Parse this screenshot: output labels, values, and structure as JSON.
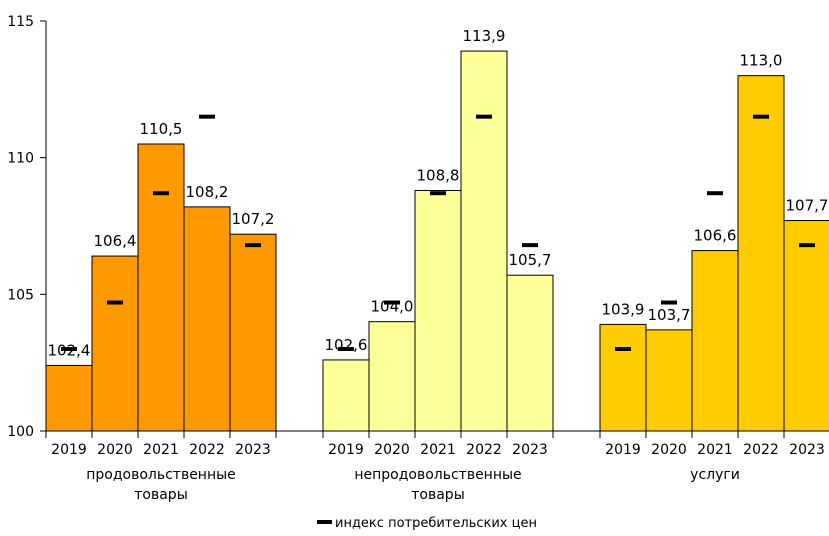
{
  "chart_data": {
    "type": "bar",
    "ylim": [
      100,
      115
    ],
    "y_ticks": [
      "100",
      "105",
      "110",
      "115"
    ],
    "grid": false,
    "legend_position": "bottom-center",
    "legend": [
      "индекс потребительских цен"
    ],
    "groups": [
      {
        "label_lines": [
          "продовольственные",
          "товары"
        ],
        "color": "#FF9900",
        "years": [
          "2019",
          "2020",
          "2021",
          "2022",
          "2023"
        ],
        "values": [
          102.4,
          106.4,
          110.5,
          108.2,
          107.2
        ],
        "value_labels": [
          "102,4",
          "106,4",
          "110,5",
          "108,2",
          "107,2"
        ]
      },
      {
        "label_lines": [
          "непродовольственные",
          "товары"
        ],
        "color": "#FFFF99",
        "years": [
          "2019",
          "2020",
          "2021",
          "2022",
          "2023"
        ],
        "values": [
          102.6,
          104.0,
          108.8,
          113.9,
          105.7
        ],
        "value_labels": [
          "102,6",
          "104,0",
          "108,8",
          "113,9",
          "105,7"
        ]
      },
      {
        "label_lines": [
          "услуги"
        ],
        "color": "#FFCC00",
        "years": [
          "2019",
          "2020",
          "2021",
          "2022",
          "2023"
        ],
        "values": [
          103.9,
          103.7,
          106.6,
          113.0,
          107.7
        ],
        "value_labels": [
          "103,9",
          "103,7",
          "106,6",
          "113,0",
          "107,7"
        ]
      }
    ],
    "cpi_series": {
      "name": "индекс потребительских цен",
      "values": [
        103.0,
        104.7,
        108.7,
        111.5,
        106.8
      ]
    }
  }
}
